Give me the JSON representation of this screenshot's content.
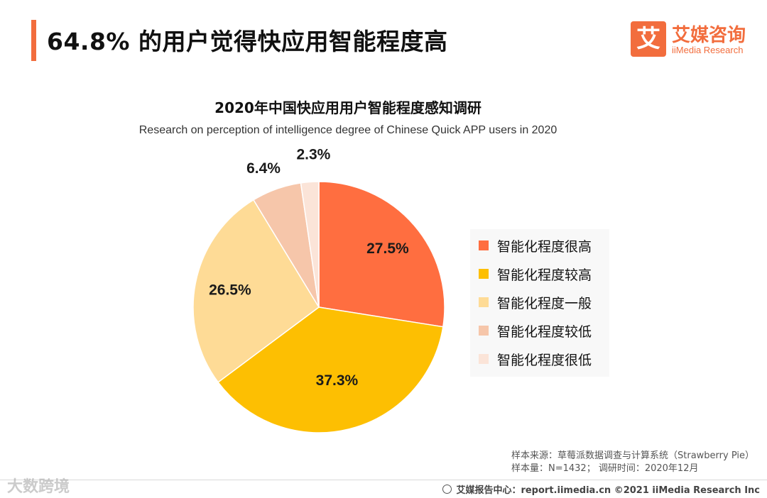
{
  "header": {
    "title": "64.8% 的用户觉得快应用智能程度高",
    "accent_color": "#f26d3d"
  },
  "logo": {
    "mark": "艾",
    "name_cn": "艾媒咨询",
    "name_en": "iiMedia Research"
  },
  "chart_data": {
    "type": "pie",
    "title": "2020年中国快应用用户智能程度感知调研",
    "subtitle": "Research on perception of intelligence degree of Chinese Quick APP users in 2020",
    "unit": "%",
    "legend_position": "right",
    "slices": [
      {
        "label": "智能化程度很高",
        "value": 27.5,
        "display": "27.5%",
        "color": "#ff6e40"
      },
      {
        "label": "智能化程度较高",
        "value": 37.3,
        "display": "37.3%",
        "color": "#fdbf02"
      },
      {
        "label": "智能化程度一般",
        "value": 26.5,
        "display": "26.5%",
        "color": "#fedb96"
      },
      {
        "label": "智能化程度较低",
        "value": 6.4,
        "display": "6.4%",
        "color": "#f6c6aa"
      },
      {
        "label": "智能化程度很低",
        "value": 2.3,
        "display": "2.3%",
        "color": "#fbe4d8"
      }
    ]
  },
  "source": {
    "line1": "样本来源：草莓派数据调查与计算系统（Strawberry Pie）",
    "line2": "样本量：N=1432；  调研时间：2020年12月"
  },
  "footer": {
    "text": "艾媒报告中心：report.iimedia.cn   ©2021  iiMedia Research  Inc"
  },
  "watermark": {
    "text": "大数跨境"
  }
}
